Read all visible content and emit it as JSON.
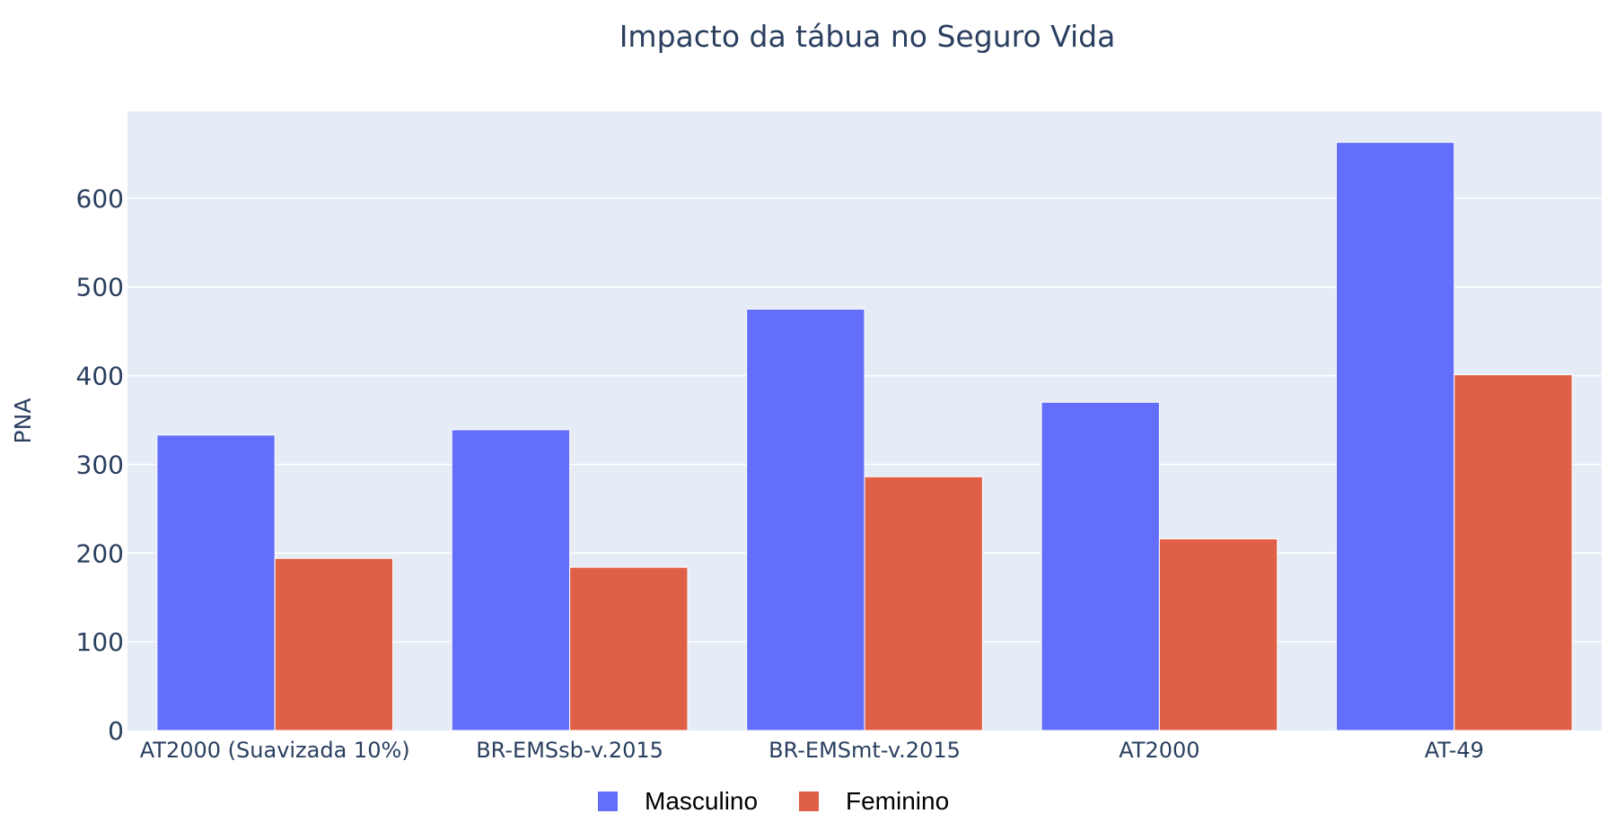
{
  "chart_data": {
    "type": "bar",
    "title": "Impacto da tábua no Seguro Vida",
    "xlabel": "",
    "ylabel": "PNA",
    "categories": [
      "AT2000 (Suavizada 10%)",
      "BR-EMSsb-v.2015",
      "BR-EMSmt-v.2015",
      "AT2000",
      "AT-49"
    ],
    "series": [
      {
        "name": "Masculino",
        "color": "#636efa",
        "values": [
          333,
          339,
          475,
          370,
          663
        ]
      },
      {
        "name": "Feminino",
        "color": "#e05f47",
        "values": [
          194,
          184,
          286,
          216,
          401
        ]
      }
    ],
    "yticks": [
      0,
      100,
      200,
      300,
      400,
      500,
      600
    ],
    "ylim": [
      0,
      698
    ],
    "grid": true,
    "legend_placement": "bottom-center",
    "plot_background": "#e5ecf6",
    "text_color": "#2a3f5f"
  }
}
